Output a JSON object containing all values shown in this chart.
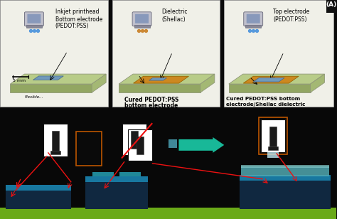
{
  "bg_color": "#0a0a0a",
  "top_bg": "#f0f0e8",
  "substrate_color": "#b8cc88",
  "substrate_edge": "#909878",
  "pedot_blue": "#7099bb",
  "pedot_blue_edge": "#446688",
  "dielectric_orange": "#cc8820",
  "dielectric_edge": "#996600",
  "printhead_gray": "#b8b8c0",
  "printhead_dark": "#606068",
  "printhead_body": "#9090a0",
  "dots_blue": "#5599dd",
  "dots_orange": "#cc8833",
  "corner_label": "(A)",
  "panel1_t1": "Inkjet printhead",
  "panel1_t2": "Bottom electrode",
  "panel1_t3": "(PEDOT:PSS)",
  "panel1_sub": "Flexible...",
  "panel1_scale": "5 mm",
  "panel2_t1": "Dielectric",
  "panel2_t2": "(Shellac)",
  "panel2_t3": "Cured PEDOT:PSS",
  "panel2_t4": "bottom electrode",
  "panel3_t1": "Top electrode",
  "panel3_t2": "(PEDOT:PSS)",
  "panel3_t3": "Cured PEDOT:PSS bottom",
  "panel3_t4": "electrode/Shellac dielectric",
  "arrow_color": "#18b898",
  "red_color": "#ee1111",
  "orange_border": "#bb5500",
  "conv_green": "#6aaa18",
  "conv_dark": "#102840",
  "conv_teal": "#1878a0",
  "conv_teal2": "#208898",
  "ink_teal": "#50a8b0",
  "white": "#ffffff",
  "black": "#111111"
}
